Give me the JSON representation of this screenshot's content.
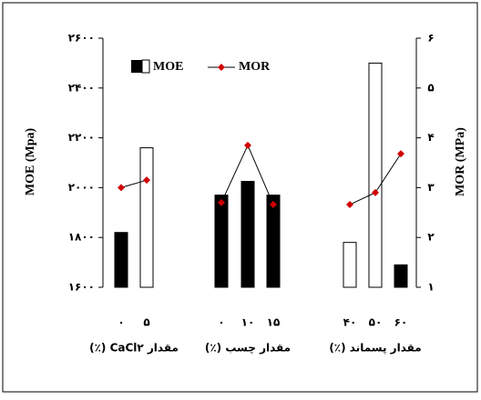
{
  "chart_data": {
    "type": "bar",
    "ylabel": "MOE (Mpa)",
    "y2label": "MOR (MPa)",
    "ylim": [
      1600,
      2600
    ],
    "yticks": [
      {
        "value": 1600,
        "label": "۱۶۰۰"
      },
      {
        "value": 1800,
        "label": "۱۸۰۰"
      },
      {
        "value": 2000,
        "label": "۲۰۰۰"
      },
      {
        "value": 2200,
        "label": "۲۲۰۰"
      },
      {
        "value": 2400,
        "label": "۲۴۰۰"
      },
      {
        "value": 2600,
        "label": "۲۶۰۰"
      }
    ],
    "y2lim": [
      1,
      6
    ],
    "y2ticks": [
      {
        "value": 1,
        "label": "۱"
      },
      {
        "value": 2,
        "label": "۲"
      },
      {
        "value": 3,
        "label": "۳"
      },
      {
        "value": 4,
        "label": "۴"
      },
      {
        "value": 5,
        "label": "۵"
      },
      {
        "value": 6,
        "label": "۶"
      }
    ],
    "series": [
      {
        "name": "MOE",
        "color": "#000000"
      },
      {
        "name": "MOR",
        "color": "#d00000",
        "axis": "y2"
      }
    ],
    "groups": [
      {
        "label": "مقدار CaCl۲ (٪)",
        "categories": [
          "۰",
          "۵"
        ],
        "moe": [
          1820,
          2160
        ],
        "moe_colors": [
          "#000000",
          "#ffffff"
        ],
        "mor": [
          3.0,
          3.15
        ]
      },
      {
        "label": "مقدار چسب (٪)",
        "categories": [
          "۰",
          "۱۰",
          "۱۵"
        ],
        "moe": [
          1970,
          2025,
          1970
        ],
        "moe_colors": [
          "#000000",
          "#000000",
          "#000000"
        ],
        "mor": [
          2.7,
          3.85,
          2.66
        ]
      },
      {
        "label": "مقدار پسماند (٪)",
        "categories": [
          "۴۰",
          "۵۰",
          "۶۰"
        ],
        "moe": [
          1780,
          2500,
          1690
        ],
        "moe_colors": [
          "#ffffff",
          "#ffffff",
          "#000000"
        ],
        "mor": [
          2.66,
          2.9,
          3.68
        ]
      }
    ]
  }
}
